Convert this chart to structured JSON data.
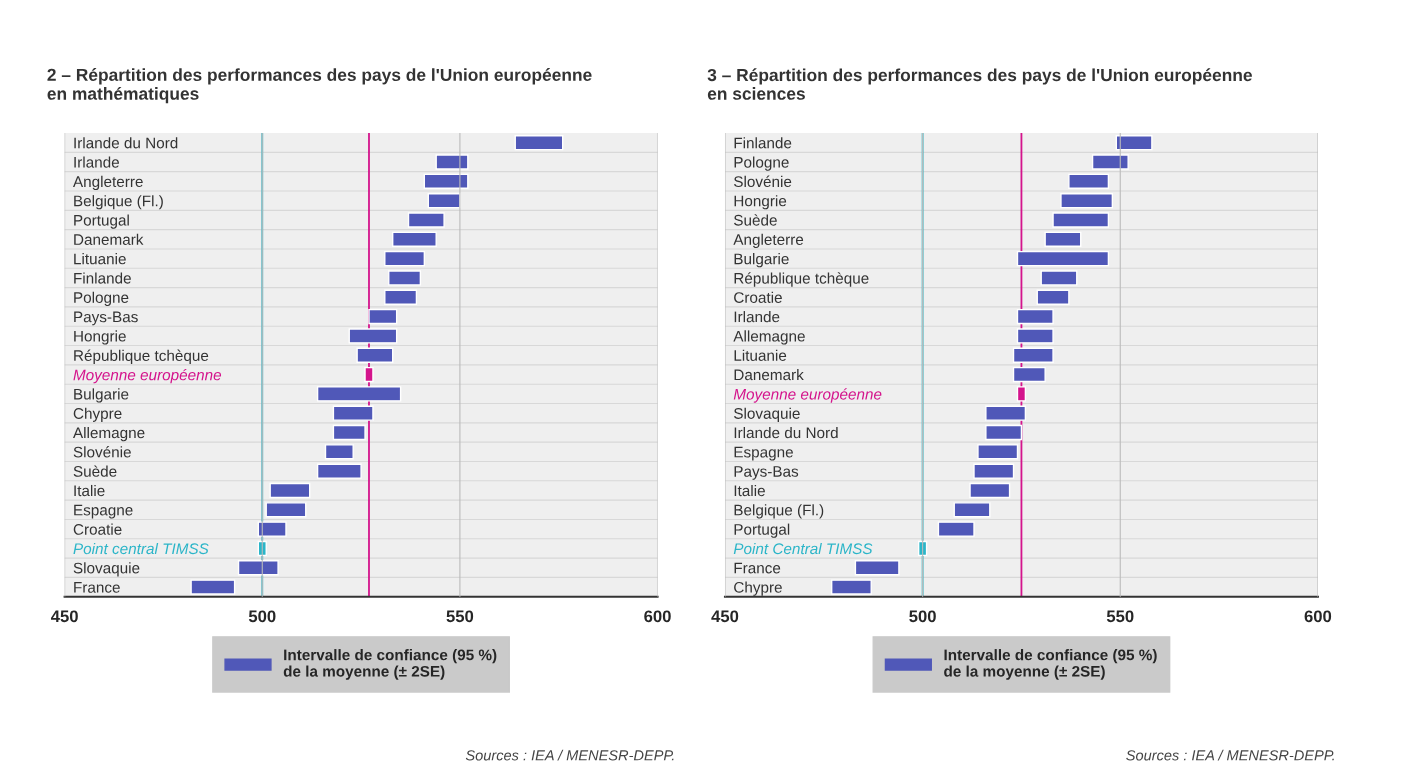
{
  "chart_data": [
    {
      "type": "bar",
      "orientation": "horizontal",
      "title": "2 – Répartition des performances des pays de l'Union européenne\nen mathématiques",
      "categories": [
        "Irlande du Nord",
        "Irlande",
        "Angleterre",
        "Belgique (Fl.)",
        "Portugal",
        "Danemark",
        "Lituanie",
        "Finlande",
        "Pologne",
        "Pays-Bas",
        "Hongrie",
        "République tchèque",
        "Moyenne européenne",
        "Bulgarie",
        "Chypre",
        "Allemagne",
        "Slovénie",
        "Suède",
        "Italie",
        "Espagne",
        "Croatie",
        "Point central TIMSS",
        "Slovaquie",
        "France"
      ],
      "series": [
        {
          "name": "Intervalle de confiance (95 %)\nde la moyenne (± 2SE)",
          "color": "#5058b8",
          "base": [
            564,
            544,
            541,
            542,
            537,
            533,
            531,
            532,
            531,
            527,
            522,
            524,
            526,
            514,
            518,
            518,
            516,
            514,
            502,
            501,
            499,
            499,
            494,
            482
          ],
          "values": [
            12,
            8,
            11,
            8,
            9,
            11,
            10,
            8,
            8,
            7,
            12,
            9,
            2,
            21,
            10,
            8,
            7,
            11,
            10,
            10,
            7,
            2,
            10,
            11
          ],
          "colors": [
            "#5058b8",
            "#5058b8",
            "#5058b8",
            "#5058b8",
            "#5058b8",
            "#5058b8",
            "#5058b8",
            "#5058b8",
            "#5058b8",
            "#5058b8",
            "#5058b8",
            "#5058b8",
            "#d4148c",
            "#5058b8",
            "#5058b8",
            "#5058b8",
            "#5058b8",
            "#5058b8",
            "#5058b8",
            "#5058b8",
            "#5058b8",
            "#2bb5c8",
            "#5058b8",
            "#5058b8"
          ]
        }
      ],
      "xlim": [
        450,
        600
      ],
      "xticks": [
        450,
        500,
        550,
        600
      ],
      "grid": true,
      "legend": "bottom",
      "ref_lines": [
        {
          "axis": "x",
          "value": 500,
          "color": "#2bb5c8"
        },
        {
          "axis": "x",
          "value": 527,
          "color": "#d4148c"
        }
      ],
      "annotations": [
        "Sources : IEA / MENESR-DEPP."
      ]
    },
    {
      "type": "bar",
      "orientation": "horizontal",
      "title": "3 – Répartition des performances des pays de l'Union européenne\nen sciences",
      "categories": [
        "Finlande",
        "Pologne",
        "Slovénie",
        "Hongrie",
        "Suède",
        "Angleterre",
        "Bulgarie",
        "République tchèque",
        "Croatie",
        "Irlande",
        "Allemagne",
        "Lituanie",
        "Danemark",
        "Moyenne européenne",
        "Slovaquie",
        "Irlande du Nord",
        "Espagne",
        "Pays-Bas",
        "Italie",
        "Belgique (Fl.)",
        "Portugal",
        "Point Central TIMSS",
        "France",
        "Chypre"
      ],
      "series": [
        {
          "name": "Intervalle de confiance (95 %)\nde la moyenne (± 2SE)",
          "color": "#5058b8",
          "base": [
            549,
            543,
            537,
            535,
            533,
            531,
            524,
            530,
            529,
            524,
            524,
            523,
            523,
            524,
            516,
            516,
            514,
            513,
            512,
            508,
            504,
            499,
            483,
            477
          ],
          "values": [
            9,
            9,
            10,
            13,
            14,
            9,
            23,
            9,
            8,
            9,
            9,
            10,
            8,
            2,
            10,
            9,
            10,
            10,
            10,
            9,
            9,
            2,
            11,
            10
          ],
          "colors": [
            "#5058b8",
            "#5058b8",
            "#5058b8",
            "#5058b8",
            "#5058b8",
            "#5058b8",
            "#5058b8",
            "#5058b8",
            "#5058b8",
            "#5058b8",
            "#5058b8",
            "#5058b8",
            "#5058b8",
            "#d4148c",
            "#5058b8",
            "#5058b8",
            "#5058b8",
            "#5058b8",
            "#5058b8",
            "#5058b8",
            "#5058b8",
            "#2bb5c8",
            "#5058b8",
            "#5058b8"
          ]
        }
      ],
      "xlim": [
        450,
        600
      ],
      "xticks": [
        450,
        500,
        550,
        600
      ],
      "grid": true,
      "legend": "bottom",
      "ref_lines": [
        {
          "axis": "x",
          "value": 500,
          "color": "#2bb5c8"
        },
        {
          "axis": "x",
          "value": 525,
          "color": "#d4148c"
        }
      ],
      "annotations": [
        "Sources : IEA / MENESR-DEPP."
      ]
    }
  ]
}
